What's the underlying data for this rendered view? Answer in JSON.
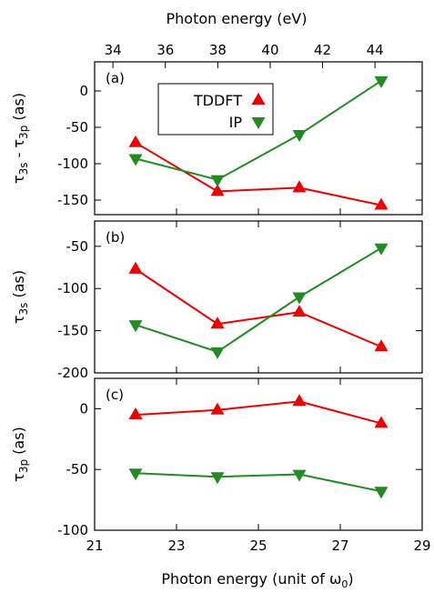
{
  "chart_data": {
    "type": "line",
    "xlabel_bottom": "Photon energy (unit of ω",
    "xlabel_bottom_sub": "0",
    "xlabel_bottom_close": ")",
    "xlabel_top": "Photon energy (eV)",
    "x_bottom_ticks": [
      21,
      23,
      25,
      27,
      29
    ],
    "x_bottom_range": [
      21,
      29
    ],
    "x_top_ticks": [
      34,
      36,
      38,
      40,
      42,
      44
    ],
    "x_top_range": [
      33.3,
      45.8
    ],
    "x": [
      22,
      24,
      26,
      28
    ],
    "legend": {
      "position": "top-left",
      "entries": [
        "TDDFT",
        "IP"
      ]
    },
    "colors": {
      "TDDFT": "#ee0000",
      "IP": "#228b22"
    },
    "panels": [
      {
        "label": "(a)",
        "ylabel_main": "τ",
        "ylabel_parts": [
          [
            "τ",
            ""
          ],
          [
            "3s",
            "sub"
          ],
          [
            " - τ",
            ""
          ],
          [
            "3p",
            "sub"
          ],
          [
            " (as)",
            ""
          ]
        ],
        "ylim": [
          -170,
          40
        ],
        "yticks": [
          -150,
          -100,
          -50,
          0
        ],
        "series": [
          {
            "name": "TDDFT",
            "marker": "triangle-up",
            "values": [
              -71,
              -138,
              -133,
              -157
            ]
          },
          {
            "name": "IP",
            "marker": "triangle-down",
            "values": [
              -93,
              -122,
              -60,
              14
            ]
          }
        ]
      },
      {
        "label": "(b)",
        "ylabel_parts": [
          [
            "τ",
            ""
          ],
          [
            "3s",
            "sub"
          ],
          [
            " (as)",
            ""
          ]
        ],
        "ylim": [
          -200,
          -20
        ],
        "yticks": [
          -200,
          -150,
          -100,
          -50
        ],
        "series": [
          {
            "name": "TDDFT",
            "marker": "triangle-up",
            "values": [
              -77,
              -142,
              -128,
              -169
            ]
          },
          {
            "name": "IP",
            "marker": "triangle-down",
            "values": [
              -143,
              -175,
              -110,
              -52
            ]
          }
        ]
      },
      {
        "label": "(c)",
        "ylabel_parts": [
          [
            "τ",
            ""
          ],
          [
            "3p",
            "sub"
          ],
          [
            " (as)",
            ""
          ]
        ],
        "ylim": [
          -100,
          25
        ],
        "yticks": [
          -100,
          -50,
          0
        ],
        "series": [
          {
            "name": "TDDFT",
            "marker": "triangle-up",
            "values": [
              -5,
              -1,
              6,
              -12
            ]
          },
          {
            "name": "IP",
            "marker": "triangle-down",
            "values": [
              -53,
              -56,
              -54,
              -68
            ]
          }
        ]
      }
    ]
  }
}
